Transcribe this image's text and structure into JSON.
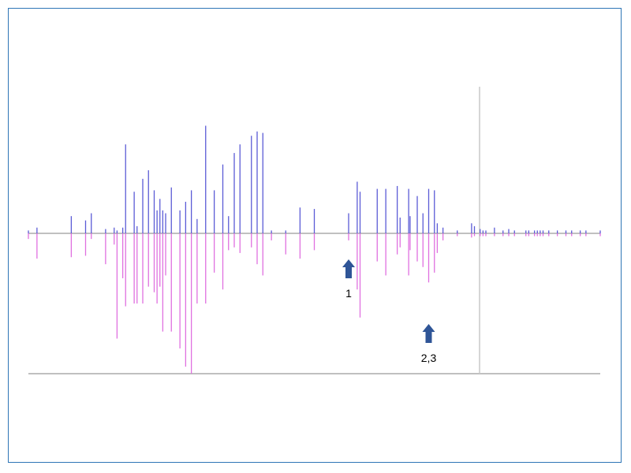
{
  "chart_data": {
    "type": "line",
    "x": [
      0,
      3,
      15,
      20,
      22,
      27,
      30,
      31,
      33,
      34,
      37,
      38,
      40,
      42,
      44,
      45,
      46,
      47,
      48,
      50,
      53,
      55,
      57,
      59,
      62,
      65,
      68,
      70,
      72,
      74,
      78,
      80,
      82,
      85,
      90,
      95,
      100,
      112,
      115,
      116,
      122,
      125,
      129,
      130,
      133,
      133.5,
      136,
      138,
      140,
      142,
      143,
      145,
      150,
      155,
      156,
      158,
      159,
      160,
      163,
      166,
      168,
      170,
      174,
      175,
      177,
      178,
      179,
      180,
      182,
      185,
      188,
      190,
      193,
      195,
      200
    ],
    "series": [
      {
        "color": "#5b5bd6",
        "values": [
          0.02,
          0.04,
          0.12,
          0.09,
          0.14,
          0.03,
          0.04,
          0.02,
          0.04,
          0.62,
          0.29,
          0.05,
          0.38,
          0.44,
          0.3,
          0.16,
          0.24,
          0.16,
          0.14,
          0.32,
          0.16,
          0.22,
          0.3,
          0.1,
          0.75,
          0.3,
          0.48,
          0.12,
          0.56,
          0.62,
          0.68,
          0.71,
          0.7,
          0.02,
          0.02,
          0.18,
          0.17,
          0.14,
          0.36,
          0.29,
          0.31,
          0.31,
          0.33,
          0.11,
          0.31,
          0.12,
          0.26,
          0.14,
          0.31,
          0.3,
          0.07,
          0.04,
          0.02,
          0.07,
          0.05,
          0.03,
          0.02,
          0.02,
          0.04,
          0.02,
          0.03,
          0.02,
          0.02,
          0.02,
          0.02,
          0.02,
          0.02,
          0.02,
          0.02,
          0.02,
          0.02,
          0.02,
          0.02,
          0.02,
          0.02
        ]
      },
      {
        "color": "#e070e0",
        "values": [
          -0.04,
          -0.18,
          -0.17,
          -0.16,
          -0.04,
          -0.22,
          -0.08,
          -0.75,
          -0.32,
          -0.52,
          -0.5,
          -0.5,
          -0.5,
          -0.38,
          -0.42,
          -0.5,
          -0.38,
          -0.7,
          -0.3,
          -0.7,
          -0.82,
          -0.95,
          -1.0,
          -0.5,
          -0.5,
          -0.28,
          -0.4,
          -0.12,
          -0.1,
          -0.14,
          -0.1,
          -0.22,
          -0.3,
          -0.05,
          -0.15,
          -0.18,
          -0.12,
          -0.05,
          -0.4,
          -0.6,
          -0.2,
          -0.3,
          -0.15,
          -0.1,
          -0.3,
          -0.12,
          -0.2,
          -0.24,
          -0.35,
          -0.28,
          -0.14,
          -0.05,
          -0.02,
          -0.03,
          -0.02,
          -0.02,
          -0.02,
          -0.02,
          -0.02,
          -0.02,
          -0.02,
          -0.02,
          -0.02,
          -0.02,
          -0.02,
          -0.02,
          -0.02,
          -0.02,
          -0.02,
          -0.02,
          -0.02,
          -0.02,
          -0.02,
          -0.02,
          -0.02
        ]
      }
    ],
    "annotations": [
      {
        "label": "1",
        "x": 112,
        "color": "#2f5597",
        "arrow_direction": "up"
      },
      {
        "label": "2,3",
        "x": 140,
        "color": "#2f5597",
        "arrow_direction": "up"
      }
    ],
    "reference_lines": [
      {
        "orientation": "vertical",
        "x": 156,
        "color": "#c8c8c8"
      },
      {
        "orientation": "horizontal",
        "y": 0,
        "color": "#808080"
      },
      {
        "orientation": "horizontal",
        "y": -1.0,
        "color": "#808080"
      }
    ],
    "xlim": [
      0,
      200
    ],
    "ylim": [
      -1.0,
      1.0
    ],
    "grid": false,
    "legend": "none",
    "title": "",
    "xlabel": "",
    "ylabel": ""
  }
}
